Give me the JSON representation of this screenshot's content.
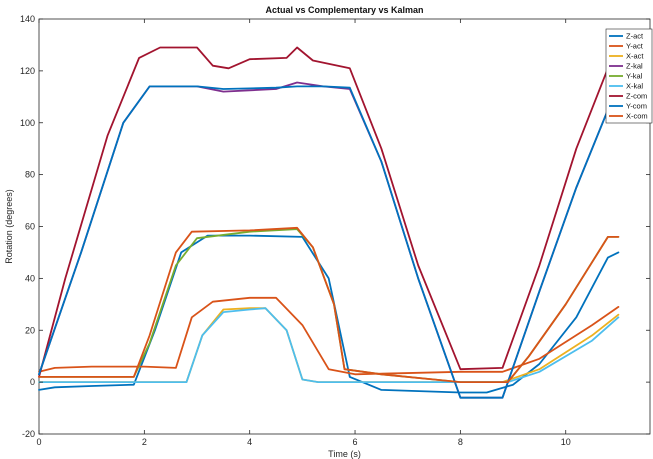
{
  "chart_data": {
    "type": "line",
    "title": "Actual vs Complementary vs Kalman",
    "xlabel": "Time (s)",
    "ylabel": "Rotation (degrees)",
    "xlim": [
      0,
      11.6
    ],
    "ylim": [
      -20,
      140
    ],
    "xticks": [
      0,
      2,
      4,
      6,
      8,
      10
    ],
    "yticks": [
      -20,
      0,
      20,
      40,
      60,
      80,
      100,
      120,
      140
    ],
    "grid": false,
    "legend_position": "top-right",
    "series": [
      {
        "name": "Z-act",
        "color": "#0072BD",
        "x": [
          0,
          0.3,
          1,
          1.8,
          2.2,
          2.7,
          3.2,
          4,
          5,
          5.5,
          5.9,
          6.5,
          8,
          8.5,
          9.0,
          9.5,
          10.2,
          10.8,
          11.0
        ],
        "y": [
          -3,
          -2,
          -1.5,
          -1,
          20,
          50,
          56.5,
          56.5,
          56,
          40,
          2,
          -3,
          -4,
          -4,
          -1,
          7,
          25,
          48,
          50
        ]
      },
      {
        "name": "Y-act",
        "color": "#D95319",
        "x": [
          0,
          0.3,
          1,
          2,
          2.6,
          2.9,
          3.3,
          4,
          4.5,
          5.0,
          5.5,
          6,
          8,
          8.8,
          9.5,
          10.5,
          11.0
        ],
        "y": [
          4,
          5.5,
          6,
          6,
          5.5,
          25,
          31,
          32.5,
          32.5,
          22,
          5,
          3,
          4,
          4,
          9,
          22,
          29
        ]
      },
      {
        "name": "X-act",
        "color": "#EDB120",
        "x": [
          0,
          0.5,
          2.0,
          2.8,
          3.1,
          3.5,
          4.0,
          4.3,
          4.7,
          5.0,
          5.3,
          6,
          8,
          8.8,
          9.5,
          10.5,
          11.0
        ],
        "y": [
          0,
          0,
          0,
          0,
          18,
          28,
          28.5,
          28.5,
          20,
          1,
          0,
          0,
          0,
          0,
          5,
          18,
          26
        ]
      },
      {
        "name": "Z-kal",
        "color": "#7E2F8E",
        "x": [
          0,
          0.8,
          1.6,
          2.1,
          3.0,
          3.5,
          4.5,
          4.9,
          5.4,
          5.9,
          6.5,
          7.2,
          8.0,
          8.8,
          9.5,
          10.2,
          10.8,
          11.0
        ],
        "y": [
          3,
          50,
          100,
          114,
          114,
          112,
          113,
          115.5,
          114,
          113,
          85,
          40,
          -6,
          -6,
          35,
          75,
          105,
          106
        ]
      },
      {
        "name": "Y-kal",
        "color": "#77AC30",
        "x": [
          0,
          1.8,
          2.1,
          2.6,
          3.0,
          4.0,
          4.9,
          5.2,
          5.6,
          5.8,
          6.5,
          7.5,
          8.0,
          8.9,
          9.3,
          10.0,
          10.8,
          11.0
        ],
        "y": [
          2,
          2,
          15,
          45,
          55.5,
          58,
          59,
          52,
          30,
          5,
          3,
          1,
          0,
          0,
          10,
          30,
          56,
          56
        ]
      },
      {
        "name": "X-kal",
        "color": "#4DBEEE",
        "x": [
          0,
          0.5,
          2.0,
          2.8,
          3.1,
          3.5,
          4.0,
          4.3,
          4.7,
          5.0,
          5.3,
          6,
          8,
          8.9,
          9.5,
          10.5,
          11.0
        ],
        "y": [
          0,
          0,
          0,
          0,
          18,
          27,
          28,
          28.5,
          20,
          1,
          0,
          0,
          0,
          0,
          4,
          16,
          25
        ]
      },
      {
        "name": "Z-com",
        "color": "#A2142F",
        "x": [
          0,
          0.5,
          1.3,
          1.9,
          2.3,
          3.0,
          3.3,
          3.6,
          4.0,
          4.7,
          4.9,
          5.2,
          5.9,
          6.5,
          7.2,
          8.0,
          8.8,
          9.5,
          10.2,
          10.8,
          11.0
        ],
        "y": [
          2,
          40,
          95,
          125,
          129,
          129,
          122,
          121,
          124.5,
          125,
          129,
          124,
          121,
          90,
          45,
          5,
          5.5,
          45,
          90,
          121,
          121
        ]
      },
      {
        "name": "Y-com",
        "color": "#0072BD",
        "x": [
          0,
          0.8,
          1.6,
          2.1,
          3.0,
          3.5,
          4.5,
          4.9,
          5.4,
          5.9,
          6.5,
          7.2,
          8.0,
          8.8,
          9.5,
          10.2,
          10.8,
          11.0
        ],
        "y": [
          3,
          50,
          100,
          114,
          114,
          113,
          113.5,
          114,
          114,
          113.5,
          85,
          40,
          -6,
          -6,
          35,
          75,
          105,
          105.5
        ]
      },
      {
        "name": "X-com",
        "color": "#D95319",
        "x": [
          0,
          1.8,
          2.1,
          2.6,
          2.9,
          4.0,
          4.9,
          5.2,
          5.6,
          5.8,
          6.5,
          7.5,
          8.0,
          8.9,
          9.3,
          10.0,
          10.8,
          11.0
        ],
        "y": [
          2,
          2,
          18,
          50,
          58,
          58.5,
          59.5,
          52,
          30,
          5,
          3,
          1,
          0,
          0,
          10,
          30,
          56,
          56
        ]
      }
    ]
  }
}
